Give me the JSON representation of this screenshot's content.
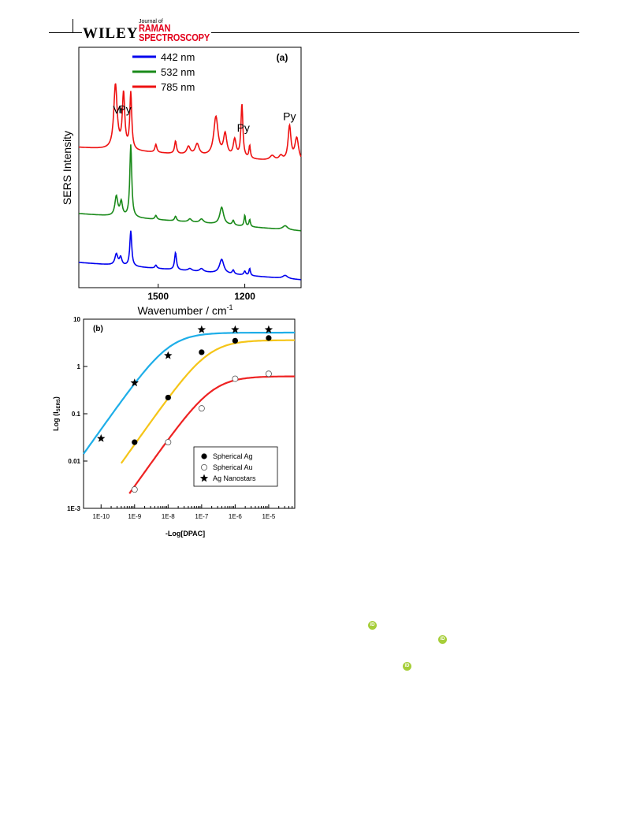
{
  "header": {
    "publisher": "WILEY",
    "journal_prefix": "Journal of",
    "journal_line1": "RAMAN",
    "journal_line2": "SPECTROSCOPY",
    "brand_color": "#e3001b"
  },
  "orcid_icons": [
    {
      "name": "orcid-icon",
      "label": "iD",
      "color": "#a6ce39"
    },
    {
      "name": "orcid-icon",
      "label": "iD",
      "color": "#a6ce39"
    },
    {
      "name": "orcid-icon",
      "label": "iD",
      "color": "#a6ce39"
    }
  ],
  "chart_data": [
    {
      "type": "line",
      "panel_label": "(a)",
      "xlabel": "Wavenumber / cm",
      "xlabel_sup": "-1",
      "ylabel": "SERS Intensity",
      "x_reversed": true,
      "xlim": [
        1775,
        1005
      ],
      "x_ticks": [
        1500,
        1200
      ],
      "y_ticks": "none",
      "grid": false,
      "legend_position": "top-left",
      "peak_labels": [
        {
          "text": "Vi",
          "x": 1640
        },
        {
          "text": "Py",
          "x": 1615
        },
        {
          "text": "Py",
          "x": 1205
        },
        {
          "text": "Py",
          "x": 1045
        }
      ],
      "series": [
        {
          "name": "442 nm",
          "color": "#0000ee",
          "offset": 0,
          "baseline": [
            [
              1775,
              22
            ],
            [
              1005,
              0
            ]
          ],
          "peaks": [
            {
              "x": 1645,
              "h": 14,
              "w": 6
            },
            {
              "x": 1630,
              "h": 10,
              "w": 5
            },
            {
              "x": 1595,
              "h": 45,
              "w": 4
            },
            {
              "x": 1508,
              "h": 4,
              "w": 4
            },
            {
              "x": 1440,
              "h": 22,
              "w": 4
            },
            {
              "x": 1390,
              "h": 3,
              "w": 8
            },
            {
              "x": 1350,
              "h": 4,
              "w": 8
            },
            {
              "x": 1280,
              "h": 18,
              "w": 9
            },
            {
              "x": 1240,
              "h": 5,
              "w": 4
            },
            {
              "x": 1200,
              "h": 5,
              "w": 4
            },
            {
              "x": 1183,
              "h": 9,
              "w": 3
            },
            {
              "x": 1060,
              "h": 4,
              "w": 10
            }
          ]
        },
        {
          "name": "532 nm",
          "color": "#1a8a1a",
          "offset": 62,
          "baseline": [
            [
              1775,
              22
            ],
            [
              1005,
              0
            ]
          ],
          "peaks": [
            {
              "x": 1645,
              "h": 25,
              "w": 6
            },
            {
              "x": 1628,
              "h": 18,
              "w": 5
            },
            {
              "x": 1595,
              "h": 92,
              "w": 4
            },
            {
              "x": 1508,
              "h": 5,
              "w": 4
            },
            {
              "x": 1440,
              "h": 6,
              "w": 4
            },
            {
              "x": 1390,
              "h": 4,
              "w": 7
            },
            {
              "x": 1350,
              "h": 5,
              "w": 8
            },
            {
              "x": 1280,
              "h": 22,
              "w": 8
            },
            {
              "x": 1240,
              "h": 6,
              "w": 4
            },
            {
              "x": 1200,
              "h": 14,
              "w": 3
            },
            {
              "x": 1183,
              "h": 9,
              "w": 3
            },
            {
              "x": 1060,
              "h": 5,
              "w": 10
            }
          ]
        },
        {
          "name": "785 nm",
          "color": "#ee1111",
          "offset": 148,
          "baseline": [
            [
              1775,
              20
            ],
            [
              1005,
              0
            ]
          ],
          "peaks": [
            {
              "x": 1648,
              "h": 82,
              "w": 7
            },
            {
              "x": 1620,
              "h": 70,
              "w": 5
            },
            {
              "x": 1595,
              "h": 72,
              "w": 4
            },
            {
              "x": 1508,
              "h": 10,
              "w": 4
            },
            {
              "x": 1440,
              "h": 16,
              "w": 4
            },
            {
              "x": 1395,
              "h": 10,
              "w": 7
            },
            {
              "x": 1365,
              "h": 14,
              "w": 8
            },
            {
              "x": 1300,
              "h": 50,
              "w": 9
            },
            {
              "x": 1268,
              "h": 28,
              "w": 7
            },
            {
              "x": 1235,
              "h": 22,
              "w": 6
            },
            {
              "x": 1210,
              "h": 68,
              "w": 4
            },
            {
              "x": 1183,
              "h": 16,
              "w": 3
            },
            {
              "x": 1105,
              "h": 6,
              "w": 10
            },
            {
              "x": 1075,
              "h": 6,
              "w": 8
            },
            {
              "x": 1045,
              "h": 44,
              "w": 6
            },
            {
              "x": 1020,
              "h": 30,
              "w": 8
            }
          ]
        }
      ]
    },
    {
      "type": "scatter",
      "panel_label": "(b)",
      "xlabel": "-Log[DPAC]",
      "ylabel": "Log (I",
      "ylabel_sub": "SERS",
      "ylabel_end": ")",
      "x_scale": "log",
      "y_scale": "log",
      "xlim": [
        3e-11,
        6e-05
      ],
      "ylim": [
        0.001,
        10
      ],
      "x_ticks": [
        {
          "value": 1e-10,
          "label": "1E-10"
        },
        {
          "value": 1e-09,
          "label": "1E-9"
        },
        {
          "value": 1e-08,
          "label": "1E-8"
        },
        {
          "value": 1e-07,
          "label": "1E-7"
        },
        {
          "value": 1e-06,
          "label": "1E-6"
        },
        {
          "value": 1e-05,
          "label": "1E-5"
        }
      ],
      "y_ticks": [
        {
          "value": 0.001,
          "label": "1E-3"
        },
        {
          "value": 0.01,
          "label": "0.01"
        },
        {
          "value": 0.1,
          "label": "0.1"
        },
        {
          "value": 1,
          "label": "1"
        },
        {
          "value": 10,
          "label": "10"
        }
      ],
      "grid": false,
      "legend_position": "bottom-right",
      "series": [
        {
          "name": "Spherical Ag",
          "marker": "filled-circle",
          "points": [
            [
              1e-09,
              0.025
            ],
            [
              1e-08,
              0.22
            ],
            [
              1e-07,
              2.0
            ],
            [
              1e-06,
              3.5
            ],
            [
              1e-05,
              4.0
            ]
          ],
          "fit_color": "#f5c518",
          "fit_x_range": [
            4e-10,
            6e-05
          ],
          "fit_params": {
            "ymax": 3.6,
            "x0": 1.6e-07
          }
        },
        {
          "name": "Spherical Au",
          "marker": "open-circle",
          "points": [
            [
              1e-09,
              0.0025
            ],
            [
              1e-08,
              0.025
            ],
            [
              1e-07,
              0.13
            ],
            [
              1e-06,
              0.55
            ],
            [
              1e-05,
              0.7
            ]
          ],
          "fit_color": "#ee2222",
          "fit_x_range": [
            7e-10,
            6e-05
          ],
          "fit_params": {
            "ymax": 0.62,
            "x0": 2.1e-07
          }
        },
        {
          "name": "Ag Nanostars",
          "marker": "star",
          "points": [
            [
              1e-10,
              0.03
            ],
            [
              1e-09,
              0.45
            ],
            [
              1e-08,
              1.7
            ],
            [
              1e-07,
              6.0
            ],
            [
              1e-06,
              6.0
            ],
            [
              1e-05,
              6.0
            ]
          ],
          "fit_color": "#1eaee8",
          "fit_x_range": [
            3e-11,
            6e-05
          ],
          "fit_params": {
            "ymax": 5.2,
            "x0": 1.1e-08
          }
        }
      ]
    }
  ]
}
